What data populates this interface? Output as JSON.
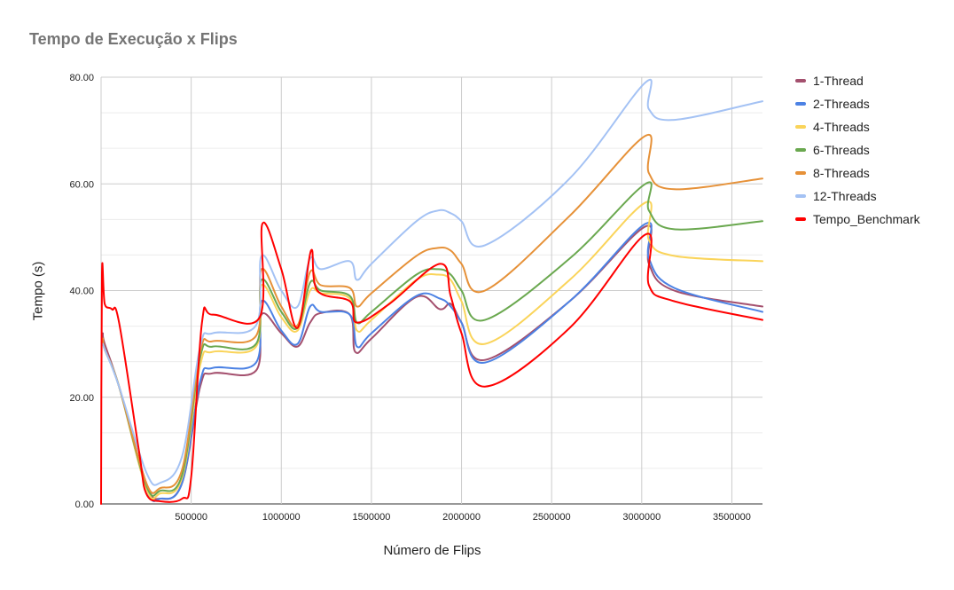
{
  "chart_data": {
    "type": "line",
    "title": "Tempo de Execução x Flips",
    "xlabel": "Número de Flips",
    "ylabel": "Tempo (s)",
    "xlim": [
      0,
      3670000
    ],
    "ylim": [
      0,
      80
    ],
    "xticks": [
      "500000",
      "1000000",
      "1500000",
      "2000000",
      "2500000",
      "3000000",
      "3500000"
    ],
    "xtick_values": [
      500000,
      1000000,
      1500000,
      2000000,
      2500000,
      3000000,
      3500000
    ],
    "yticks": [
      "0.00",
      "20.00",
      "40.00",
      "60.00",
      "80.00"
    ],
    "ytick_values": [
      0,
      20,
      40,
      60,
      80
    ],
    "grid": true,
    "legend_position": "right",
    "series": [
      {
        "name": "1-Thread",
        "color": "#a4506e",
        "x": [
          10000,
          20000,
          100000,
          250000,
          330000,
          450000,
          550000,
          620000,
          860000,
          890000,
          1000000,
          1090000,
          1160000,
          1220000,
          1380000,
          1410000,
          1500000,
          1750000,
          1880000,
          1940000,
          2000000,
          2130000,
          2600000,
          3020000,
          3040000,
          3180000,
          3670000
        ],
        "y": [
          32,
          30,
          22,
          4,
          1,
          4,
          22,
          24.5,
          25,
          35.5,
          32,
          29.5,
          34,
          35.8,
          35.5,
          28.5,
          31,
          38.8,
          36.5,
          37.5,
          34,
          27,
          38,
          52,
          45,
          40,
          37
        ]
      },
      {
        "name": "2-Threads",
        "color": "#4c82e4",
        "x": [
          10000,
          20000,
          100000,
          250000,
          330000,
          450000,
          550000,
          620000,
          860000,
          890000,
          1000000,
          1090000,
          1160000,
          1220000,
          1380000,
          1420000,
          1500000,
          1750000,
          1880000,
          1940000,
          2000000,
          2130000,
          2600000,
          3020000,
          3040000,
          3180000,
          3670000
        ],
        "y": [
          31,
          29,
          22,
          3,
          1,
          4,
          23,
          25.5,
          26.5,
          38,
          32.5,
          30,
          37,
          36,
          35.5,
          29.5,
          32,
          39,
          38.5,
          37,
          34,
          26.5,
          38,
          52.5,
          46,
          40.5,
          36
        ]
      },
      {
        "name": "4-Threads",
        "color": "#fad45a",
        "x": [
          10000,
          20000,
          100000,
          250000,
          330000,
          450000,
          550000,
          620000,
          860000,
          890000,
          1000000,
          1090000,
          1160000,
          1220000,
          1380000,
          1420000,
          1500000,
          1750000,
          1870000,
          1940000,
          2000000,
          2130000,
          2600000,
          3020000,
          3040000,
          3180000,
          3670000
        ],
        "y": [
          31,
          29,
          22,
          3,
          2,
          5,
          26,
          28.5,
          29.5,
          41,
          35,
          32.5,
          40,
          39.5,
          38.5,
          32.5,
          34.5,
          42,
          43,
          42,
          38,
          30,
          42,
          56.5,
          49.5,
          46.5,
          45.5
        ]
      },
      {
        "name": "6-Threads",
        "color": "#6aa84f",
        "x": [
          10000,
          20000,
          100000,
          250000,
          330000,
          450000,
          550000,
          620000,
          860000,
          890000,
          1000000,
          1090000,
          1160000,
          1220000,
          1380000,
          1420000,
          1500000,
          1750000,
          1870000,
          1940000,
          2000000,
          2130000,
          2600000,
          3020000,
          3040000,
          3180000,
          3670000
        ],
        "y": [
          31,
          29,
          22,
          3.5,
          2.5,
          5.5,
          27.5,
          29.5,
          30,
          42,
          36,
          33,
          41.5,
          40,
          39,
          34,
          36,
          43,
          44,
          43,
          40,
          34.5,
          46,
          60,
          55,
          51.5,
          53
        ]
      },
      {
        "name": "8-Threads",
        "color": "#e69138",
        "x": [
          10000,
          20000,
          100000,
          250000,
          330000,
          450000,
          550000,
          620000,
          860000,
          890000,
          1000000,
          1090000,
          1160000,
          1220000,
          1380000,
          1420000,
          1500000,
          1750000,
          1870000,
          1940000,
          2000000,
          2130000,
          2600000,
          3020000,
          3040000,
          3180000,
          3670000
        ],
        "y": [
          31,
          29,
          22,
          4,
          3,
          6.5,
          28.5,
          30.5,
          31.5,
          44,
          37,
          33.5,
          43.5,
          41,
          40.5,
          37,
          39.5,
          46.5,
          48,
          47.5,
          45,
          40,
          54,
          69,
          62,
          59,
          61
        ]
      },
      {
        "name": "12-Threads",
        "color": "#a4c2f4",
        "x": [
          10000,
          20000,
          100000,
          250000,
          330000,
          450000,
          550000,
          620000,
          860000,
          890000,
          1000000,
          1090000,
          1160000,
          1220000,
          1380000,
          1420000,
          1500000,
          1750000,
          1870000,
          1940000,
          2000000,
          2130000,
          2600000,
          3020000,
          3040000,
          3180000,
          3670000
        ],
        "y": [
          30,
          29,
          22,
          6,
          4,
          9,
          29.5,
          32,
          33.5,
          46.5,
          40,
          37,
          46,
          44,
          45.5,
          42,
          45,
          53,
          55,
          54.5,
          53,
          48.5,
          61,
          79,
          74,
          72,
          75.5
        ]
      },
      {
        "name": "Tempo_Benchmark",
        "color": "#ff0000",
        "x": [
          0,
          5000,
          20000,
          60000,
          100000,
          210000,
          250000,
          330000,
          450000,
          500000,
          560000,
          620000,
          880000,
          895000,
          1000000,
          1090000,
          1165000,
          1200000,
          1380000,
          1420000,
          1600000,
          1880000,
          1940000,
          2000000,
          2130000,
          2600000,
          3020000,
          3040000,
          3180000,
          3670000
        ],
        "y": [
          0,
          43,
          37.5,
          36.5,
          34,
          10,
          2,
          0.5,
          1,
          5,
          34,
          35.5,
          35,
          52.5,
          44,
          33,
          47.5,
          40,
          38,
          34,
          37.5,
          45,
          39,
          32,
          22,
          33,
          50.5,
          41,
          38,
          34.5
        ]
      }
    ]
  }
}
